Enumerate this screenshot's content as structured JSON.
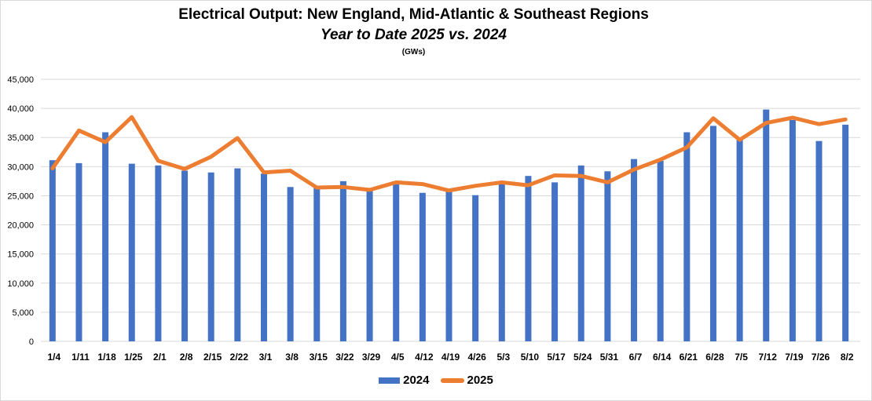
{
  "chart_data": {
    "type": "bar+line",
    "title": "Electrical Output:  New England, Mid-Atlantic & Southeast Regions",
    "subtitle": "Year to Date 2025 vs. 2024",
    "unit_label": "(GWs)",
    "categories": [
      "1/4",
      "1/11",
      "1/18",
      "1/25",
      "2/1",
      "2/8",
      "2/15",
      "2/22",
      "3/1",
      "3/8",
      "3/15",
      "3/22",
      "3/29",
      "4/5",
      "4/12",
      "4/19",
      "4/26",
      "5/3",
      "5/10",
      "5/17",
      "5/24",
      "5/31",
      "6/7",
      "6/14",
      "6/21",
      "6/28",
      "7/5",
      "7/12",
      "7/19",
      "7/26",
      "8/2"
    ],
    "series": [
      {
        "name": "2024",
        "type": "bar",
        "color": "#4472c4",
        "values": [
          31100,
          30600,
          35900,
          30500,
          30200,
          29300,
          29000,
          29700,
          28800,
          26500,
          26500,
          27500,
          26000,
          27200,
          25500,
          25700,
          25100,
          27000,
          28400,
          27300,
          30200,
          29200,
          31300,
          31000,
          35900,
          37000,
          35000,
          39800,
          38000,
          34400,
          37200
        ]
      },
      {
        "name": "2025",
        "type": "line",
        "color": "#ed7d31",
        "values": [
          29700,
          36200,
          34200,
          38500,
          31000,
          29600,
          31700,
          34900,
          29000,
          29300,
          26400,
          26500,
          26000,
          27300,
          27000,
          25900,
          26700,
          27300,
          26800,
          28500,
          28400,
          27300,
          29500,
          31200,
          33300,
          38300,
          34600,
          37500,
          38400,
          37300,
          38100
        ]
      }
    ],
    "ylim": [
      0,
      45000
    ],
    "ytick_step": 5000,
    "ytick_labels": [
      "0",
      "5,000",
      "10,000",
      "15,000",
      "20,000",
      "25,000",
      "30,000",
      "35,000",
      "40,000",
      "45,000"
    ],
    "grid": true,
    "legend_position": "bottom"
  }
}
